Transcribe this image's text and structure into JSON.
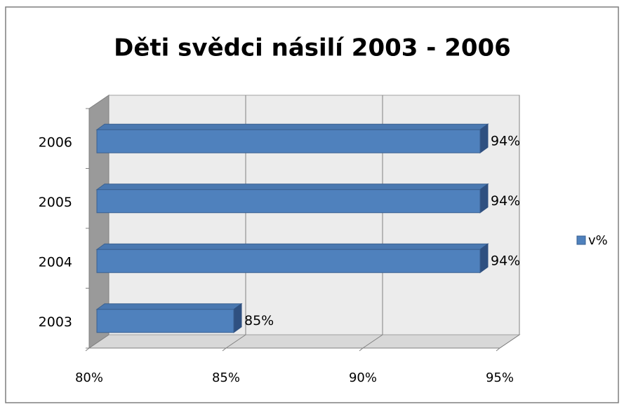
{
  "chart_data": {
    "type": "bar3d_horizontal",
    "title": "Děti svědci násilí 2003 - 2006",
    "categories": [
      "2003",
      "2004",
      "2005",
      "2006"
    ],
    "series": [
      {
        "name": "v%",
        "color": "#4f81bd",
        "values": [
          85,
          94,
          94,
          94
        ],
        "value_labels": [
          "85%",
          "94%",
          "94%",
          "94%"
        ]
      }
    ],
    "xlim": [
      80,
      95
    ],
    "xticks": [
      {
        "value": 80,
        "label": "80%"
      },
      {
        "value": 85,
        "label": "85%"
      },
      {
        "value": 90,
        "label": "90%"
      },
      {
        "value": 95,
        "label": "95%"
      }
    ],
    "grid": true,
    "legend": "right"
  }
}
